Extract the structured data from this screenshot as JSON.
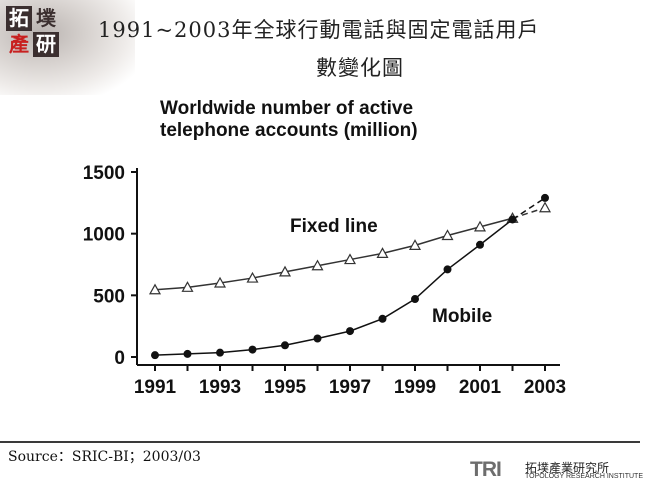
{
  "header": {
    "title_line_1": "1991~2003年全球行動電話與固定電話用戶",
    "title_line_2": "數變化圖",
    "logo_chars": [
      "拓",
      "墣",
      "產",
      "研"
    ]
  },
  "source": {
    "text": "Source：SRIC-BI；2003/03"
  },
  "footer": {
    "brand_mark": "TRI",
    "brand_name_zh": "拓墣產業研究所",
    "brand_name_en": "TOPOLOGY RESEARCH INSTITUTE"
  },
  "chart_data": {
    "type": "line",
    "title": "Worldwide number of active telephone accounts (million)",
    "title_lines": [
      "Worldwide number of active",
      "telephone accounts (million)"
    ],
    "xlabel": "",
    "ylabel": "",
    "xlim": [
      1991,
      2003
    ],
    "ylim": [
      0,
      1500
    ],
    "x_ticks": [
      1991,
      1993,
      1995,
      1997,
      1999,
      2001,
      2003
    ],
    "y_ticks": [
      0,
      500,
      1000,
      1500
    ],
    "grid": false,
    "legend": "inline-labels",
    "series": [
      {
        "name": "Fixed line",
        "marker": "triangle-open",
        "color": "#333333",
        "x": [
          1991,
          1992,
          1993,
          1994,
          1995,
          1996,
          1997,
          1998,
          1999,
          2000,
          2001,
          2002,
          2003
        ],
        "y": [
          545,
          565,
          600,
          640,
          690,
          740,
          790,
          840,
          905,
          985,
          1055,
          1125,
          1210
        ],
        "projected_from": 2002
      },
      {
        "name": "Mobile",
        "marker": "circle-filled",
        "color": "#111111",
        "x": [
          1991,
          1992,
          1993,
          1994,
          1995,
          1996,
          1997,
          1998,
          1999,
          2000,
          2001,
          2002,
          2003
        ],
        "y": [
          15,
          25,
          35,
          60,
          95,
          150,
          210,
          310,
          470,
          710,
          910,
          1115,
          1290
        ],
        "projected_from": 2002
      }
    ]
  }
}
